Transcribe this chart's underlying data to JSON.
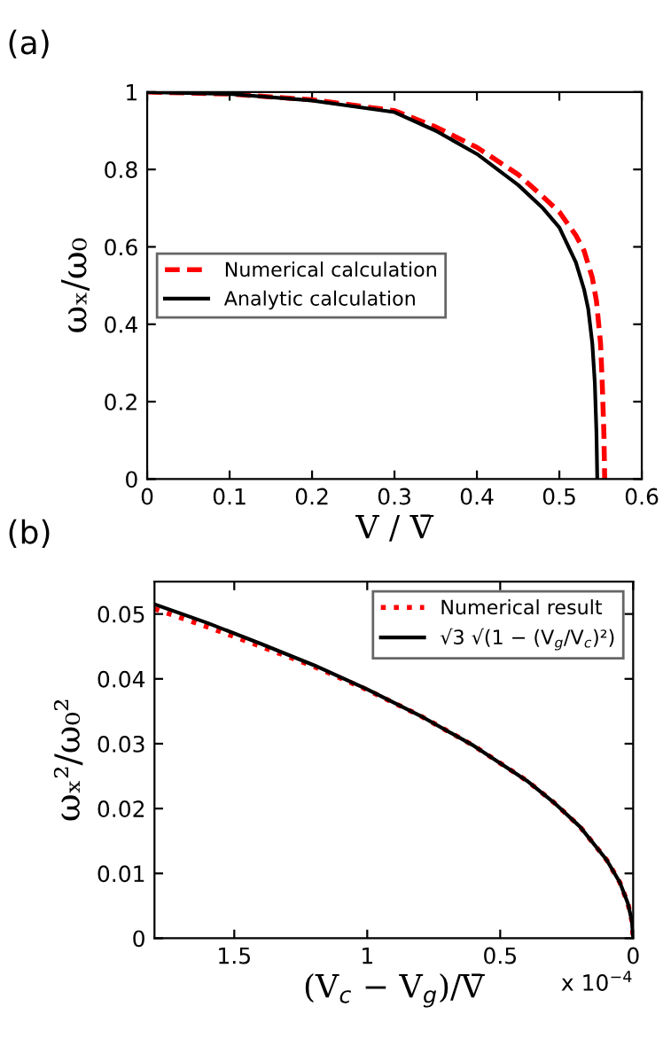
{
  "chart_data": [
    {
      "type": "line",
      "title": "(a)",
      "xlabel": "V / V̄",
      "ylabel": "ωₓ/ω₀",
      "xlim": [
        0,
        0.6
      ],
      "xticks": [
        0,
        0.1,
        0.2,
        0.3,
        0.4,
        0.5,
        0.6
      ],
      "ylim": [
        0,
        1
      ],
      "yticks": [
        0,
        0.2,
        0.4,
        0.6,
        0.8,
        1
      ],
      "grid": false,
      "legend": "left",
      "series": [
        {
          "name": "Numerical calculation",
          "color": "#ff0000",
          "line_style": "dashed",
          "x": [
            0,
            0.1,
            0.2,
            0.3,
            0.35,
            0.4,
            0.45,
            0.48,
            0.5,
            0.52,
            0.53,
            0.54,
            0.545,
            0.55,
            0.552,
            0.554,
            0.555
          ],
          "values": [
            1,
            0.995,
            0.98,
            0.952,
            0.91,
            0.857,
            0.787,
            0.73,
            0.69,
            0.63,
            0.59,
            0.52,
            0.46,
            0.35,
            0.25,
            0.12,
            0
          ]
        },
        {
          "name": "Analytic calculation",
          "color": "#000000",
          "line_style": "solid",
          "x": [
            0,
            0.1,
            0.2,
            0.3,
            0.35,
            0.4,
            0.45,
            0.48,
            0.5,
            0.52,
            0.53,
            0.535,
            0.54,
            0.543,
            0.545,
            0.546
          ],
          "values": [
            1,
            0.995,
            0.978,
            0.948,
            0.9,
            0.84,
            0.76,
            0.7,
            0.65,
            0.56,
            0.49,
            0.44,
            0.35,
            0.25,
            0.12,
            0
          ]
        }
      ]
    },
    {
      "type": "line",
      "title": "(b)",
      "xlabel": "(V$_{c}$ − V$_{g}$)/V̄",
      "ylabel": "ωₓ²/ω₀²",
      "annotations": [
        "x 10$^{−4}$"
      ],
      "xlim": [
        1.8,
        0
      ],
      "xticks": [
        1.5,
        1,
        0.5,
        0
      ],
      "ylim": [
        0,
        0.055
      ],
      "yticks": [
        0,
        0.01,
        0.02,
        0.03,
        0.04,
        0.05
      ],
      "grid": false,
      "legend": "top right",
      "series": [
        {
          "name": "Numerical result",
          "color": "#ff0000",
          "line_style": "dotted",
          "x": [
            1.8,
            1.6,
            1.4,
            1.2,
            1.0,
            0.8,
            0.6,
            0.4,
            0.3,
            0.2,
            0.1,
            0.05,
            0.02,
            0.005,
            0
          ],
          "values": [
            0.0508,
            0.048,
            0.045,
            0.0419,
            0.0383,
            0.0343,
            0.0297,
            0.0243,
            0.021,
            0.0172,
            0.0121,
            0.0086,
            0.0054,
            0.0027,
            0
          ]
        },
        {
          "name": "√3 √(1 − (V$_{g}$/V$_{c}$)²)",
          "color": "#000000",
          "line_style": "solid",
          "x": [
            1.8,
            1.6,
            1.4,
            1.2,
            1.0,
            0.8,
            0.6,
            0.4,
            0.3,
            0.2,
            0.1,
            0.05,
            0.02,
            0.005,
            0
          ],
          "values": [
            0.0515,
            0.0486,
            0.0454,
            0.0421,
            0.0384,
            0.0343,
            0.0297,
            0.0243,
            0.021,
            0.0172,
            0.0121,
            0.0086,
            0.0054,
            0.0027,
            0
          ]
        }
      ]
    }
  ]
}
